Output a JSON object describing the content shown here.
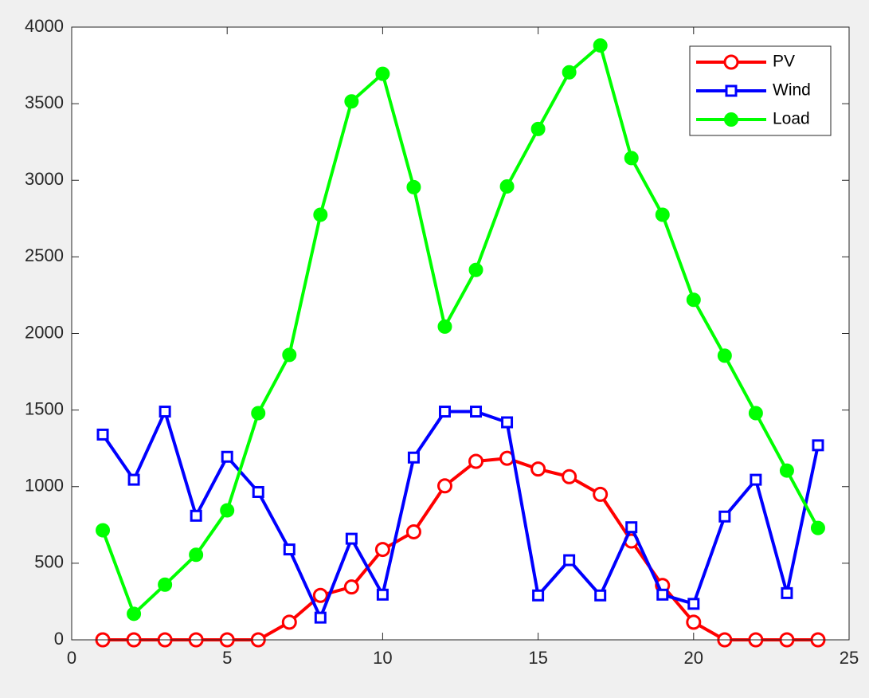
{
  "chart_data": {
    "type": "line",
    "x": [
      1,
      2,
      3,
      4,
      5,
      6,
      7,
      8,
      9,
      10,
      11,
      12,
      13,
      14,
      15,
      16,
      17,
      18,
      19,
      20,
      21,
      22,
      23,
      24
    ],
    "series": [
      {
        "name": "PV",
        "color": "#ff0000",
        "marker": "circle",
        "values": [
          0,
          0,
          0,
          0,
          0,
          0,
          115,
          290,
          345,
          590,
          705,
          1005,
          1165,
          1185,
          1115,
          1065,
          950,
          645,
          355,
          115,
          0,
          0,
          0,
          0
        ]
      },
      {
        "name": "Wind",
        "color": "#0000ff",
        "marker": "square",
        "values": [
          1340,
          1045,
          1490,
          810,
          1195,
          965,
          590,
          145,
          660,
          295,
          1190,
          1490,
          1490,
          1420,
          290,
          520,
          290,
          735,
          295,
          235,
          805,
          1045,
          305,
          1270
        ]
      },
      {
        "name": "Load",
        "color": "#00ff00",
        "marker": "disc",
        "values": [
          715,
          170,
          360,
          555,
          845,
          1480,
          1860,
          2775,
          3515,
          3695,
          2955,
          2045,
          2415,
          2960,
          3335,
          3705,
          3880,
          3145,
          2775,
          2220,
          1855,
          1480,
          1105,
          730
        ]
      }
    ],
    "xlim": [
      0,
      25
    ],
    "xticks": [
      0,
      5,
      10,
      15,
      20,
      25
    ],
    "ylim": [
      0,
      4000
    ],
    "yticks": [
      0,
      500,
      1000,
      1500,
      2000,
      2500,
      3000,
      3500,
      4000
    ],
    "grid": false,
    "legend": "northeast"
  }
}
